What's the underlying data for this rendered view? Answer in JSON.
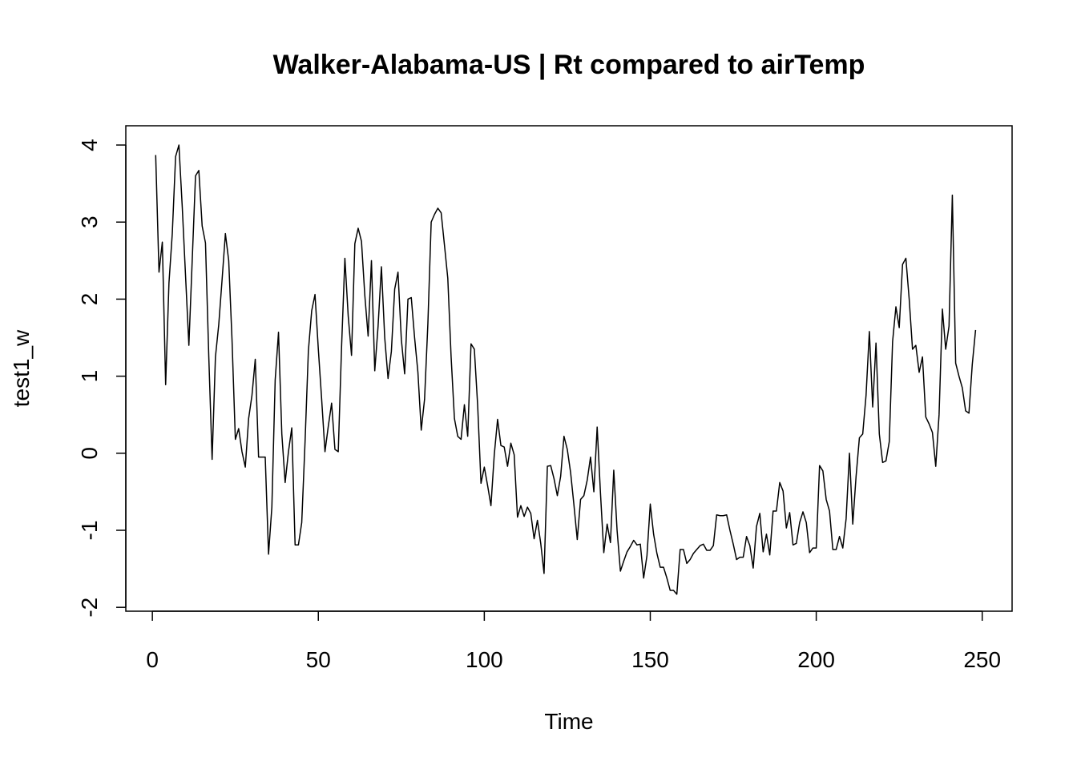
{
  "chart_data": {
    "type": "line",
    "title": "Walker-Alabama-US | Rt compared to airTemp",
    "xlabel": "Time",
    "ylabel": "test1_w",
    "xlim": [
      -8,
      259
    ],
    "ylim": [
      -2.05,
      4.25
    ],
    "x_ticks": [
      0,
      50,
      100,
      150,
      200,
      250
    ],
    "y_ticks": [
      -2,
      -1,
      0,
      1,
      2,
      3,
      4
    ],
    "grid": false,
    "legend": "none",
    "line_color": "#000000",
    "series": [
      {
        "x_start": 1,
        "values": [
          3.87,
          2.35,
          2.74,
          0.89,
          2.21,
          2.85,
          3.85,
          4.0,
          3.2,
          2.3,
          1.4,
          2.5,
          3.6,
          3.67,
          2.95,
          2.73,
          1.25,
          -0.08,
          1.25,
          1.67,
          2.25,
          2.85,
          2.5,
          1.47,
          0.18,
          0.32,
          0.02,
          -0.18,
          0.45,
          0.75,
          1.22,
          -0.05,
          -0.05,
          -0.05,
          -1.31,
          -0.7,
          0.95,
          1.57,
          0.25,
          -0.38,
          0.02,
          0.33,
          -1.19,
          -1.19,
          -0.9,
          0.15,
          1.33,
          1.85,
          2.06,
          1.35,
          0.7,
          0.02,
          0.35,
          0.65,
          0.05,
          0.02,
          1.38,
          2.53,
          1.78,
          1.27,
          2.72,
          2.92,
          2.75,
          2.05,
          1.52,
          2.5,
          1.07,
          1.65,
          2.42,
          1.5,
          0.97,
          1.32,
          2.13,
          2.35,
          1.48,
          1.03,
          2.0,
          2.02,
          1.5,
          1.05,
          0.3,
          0.7,
          1.68,
          3.0,
          3.1,
          3.18,
          3.12,
          2.7,
          2.27,
          1.25,
          0.45,
          0.22,
          0.18,
          0.63,
          0.22,
          1.42,
          1.35,
          0.62,
          -0.39,
          -0.18,
          -0.42,
          -0.68,
          -0.02,
          0.44,
          0.1,
          0.08,
          -0.17,
          0.13,
          -0.02,
          -0.83,
          -0.68,
          -0.82,
          -0.7,
          -0.78,
          -1.11,
          -0.87,
          -1.17,
          -1.56,
          -0.17,
          -0.16,
          -0.33,
          -0.55,
          -0.3,
          0.22,
          0.05,
          -0.25,
          -0.67,
          -1.12,
          -0.6,
          -0.55,
          -0.35,
          -0.05,
          -0.5,
          0.34,
          -0.52,
          -1.29,
          -0.92,
          -1.16,
          -0.22,
          -1.0,
          -1.53,
          -1.4,
          -1.28,
          -1.21,
          -1.13,
          -1.19,
          -1.18,
          -1.62,
          -1.33,
          -0.66,
          -1.05,
          -1.3,
          -1.48,
          -1.48,
          -1.62,
          -1.78,
          -1.78,
          -1.83,
          -1.25,
          -1.25,
          -1.43,
          -1.38,
          -1.3,
          -1.25,
          -1.2,
          -1.18,
          -1.26,
          -1.26,
          -1.2,
          -0.8,
          -0.81,
          -0.81,
          -0.8,
          -1.0,
          -1.18,
          -1.38,
          -1.35,
          -1.35,
          -1.08,
          -1.2,
          -1.49,
          -0.95,
          -0.78,
          -1.28,
          -1.05,
          -1.32,
          -0.75,
          -0.75,
          -0.38,
          -0.49,
          -0.97,
          -0.77,
          -1.19,
          -1.17,
          -0.9,
          -0.76,
          -0.9,
          -1.29,
          -1.23,
          -1.23,
          -0.16,
          -0.23,
          -0.6,
          -0.75,
          -1.25,
          -1.25,
          -1.08,
          -1.23,
          -0.85,
          0.0,
          -0.92,
          -0.3,
          0.2,
          0.25,
          0.75,
          1.58,
          0.6,
          1.43,
          0.25,
          -0.12,
          -0.1,
          0.15,
          1.45,
          1.9,
          1.63,
          2.45,
          2.53,
          2.0,
          1.35,
          1.4,
          1.05,
          1.25,
          0.47,
          0.38,
          0.27,
          -0.17,
          0.5,
          1.87,
          1.35,
          1.65,
          3.35,
          1.17,
          1.0,
          0.85,
          0.55,
          0.52,
          1.15,
          1.6
        ]
      }
    ]
  }
}
